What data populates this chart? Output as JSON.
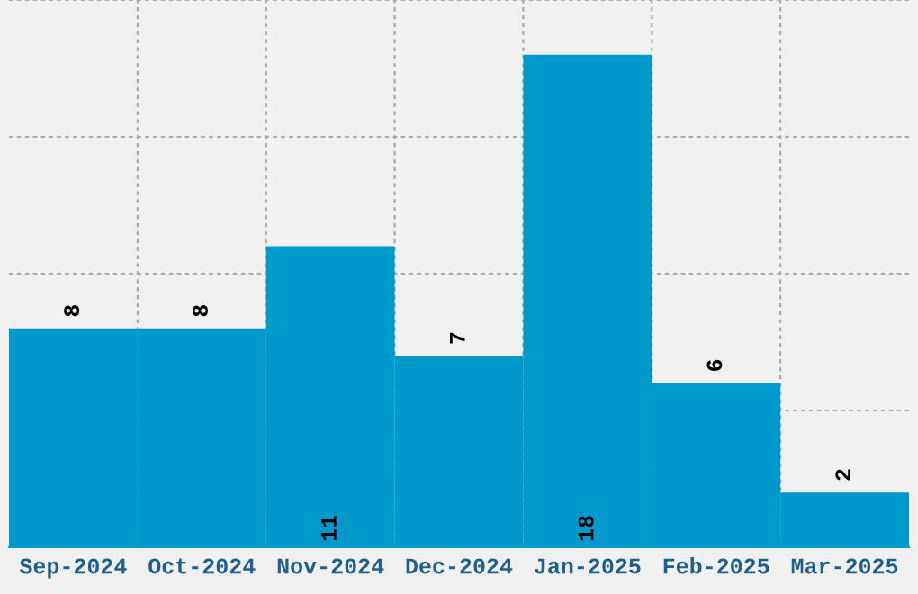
{
  "chart_data": {
    "type": "bar",
    "categories": [
      "Sep-2024",
      "Oct-2024",
      "Nov-2024",
      "Dec-2024",
      "Jan-2025",
      "Feb-2025",
      "Mar-2025"
    ],
    "values": [
      8,
      8,
      11,
      7,
      18,
      6,
      2
    ],
    "color": "#0099cc",
    "ylim": [
      0,
      20
    ],
    "yticks": [
      {
        "value": 0,
        "label": null
      },
      {
        "value": 5,
        "label": null
      },
      {
        "value": 10,
        "label": null
      },
      {
        "value": 15,
        "label": null
      },
      {
        "value": 20,
        "label": null
      }
    ],
    "tick_labels": "x",
    "grid": true,
    "data_labels": true
  }
}
